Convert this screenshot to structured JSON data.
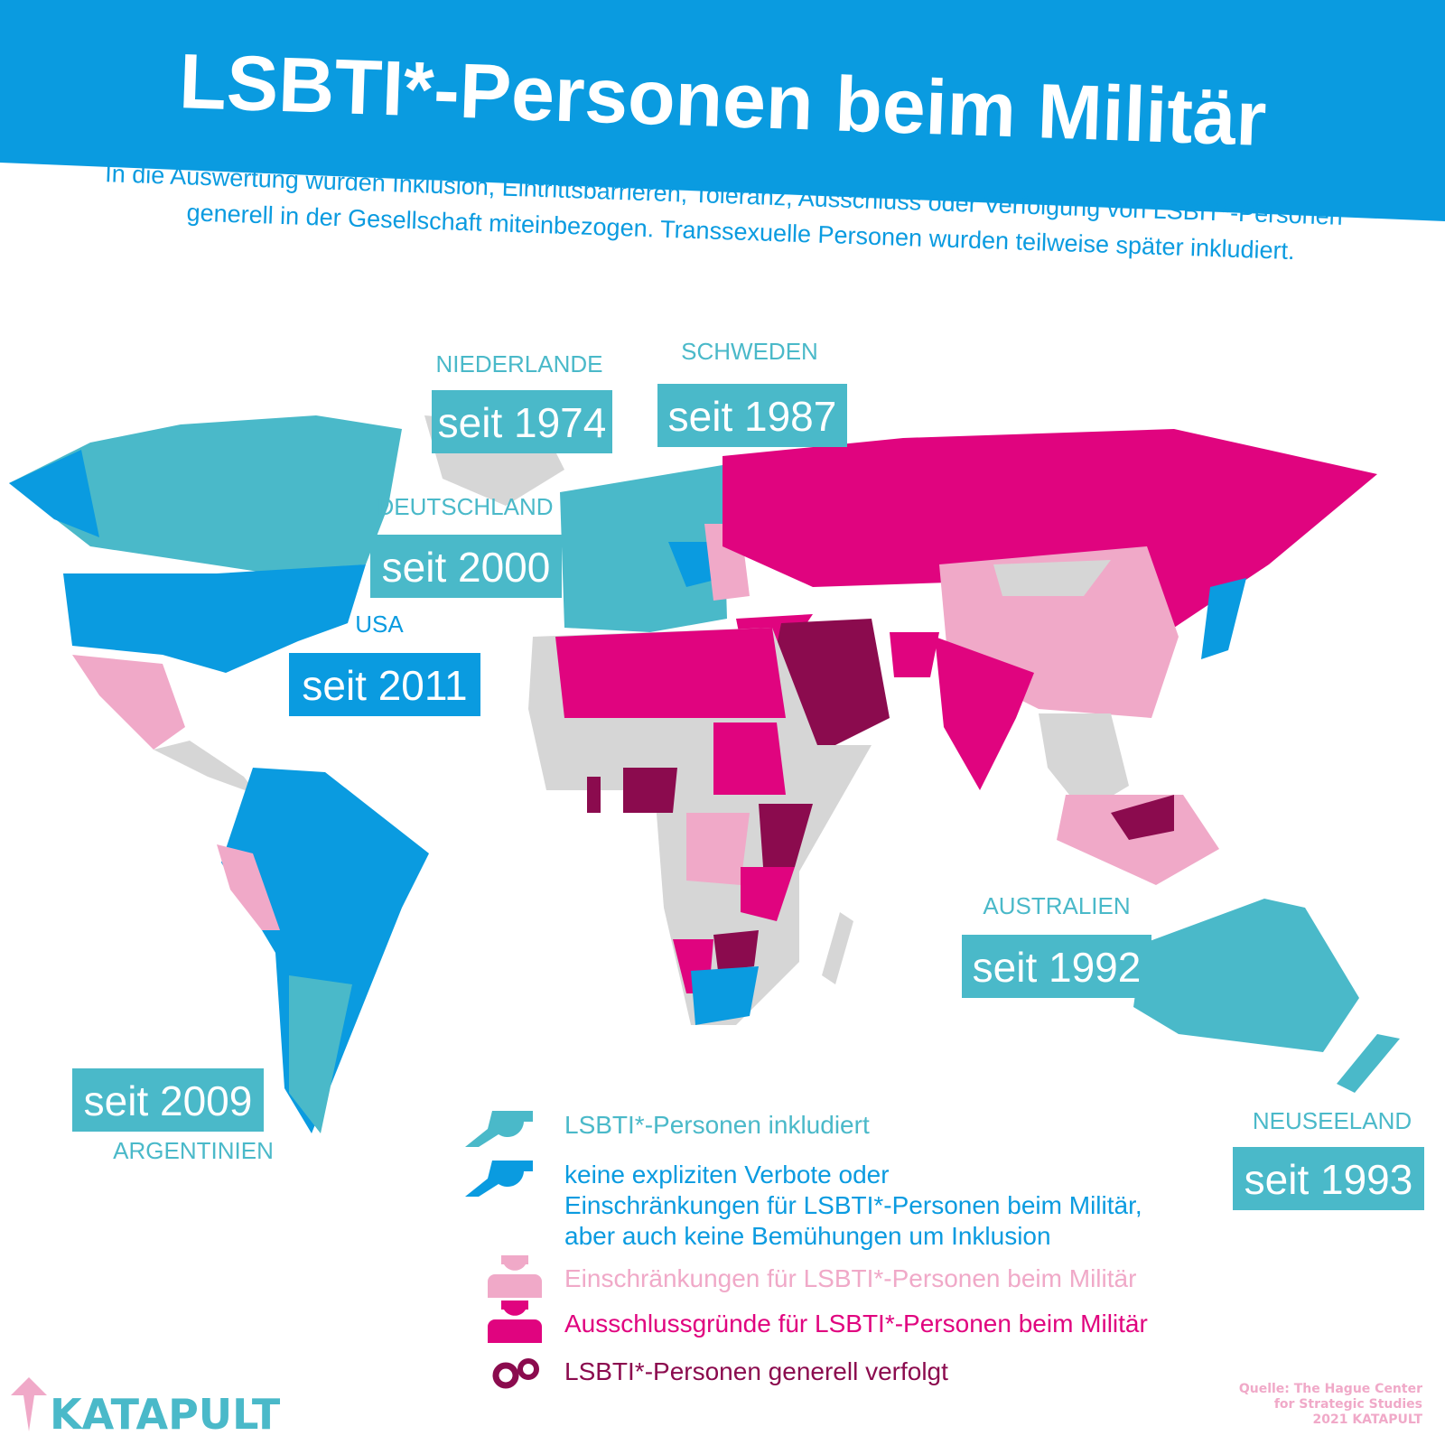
{
  "header": {
    "title": "LSBTI*-Personen beim Militär",
    "subtitle": [
      "In die Auswertung wurden Inklusion, Eintrittsbarrieren, Toleranz, Ausschluss oder Verfolgung von LSBIT*-Personen",
      "generell in der Gesellschaft miteinbezogen. Transsexuelle Personen wurden teilweise später inkludiert."
    ]
  },
  "callouts": [
    {
      "name": "NIEDERLANDE",
      "since": "seit 1974",
      "color": "#4ab9c9"
    },
    {
      "name": "SCHWEDEN",
      "since": "seit 1987",
      "color": "#4ab9c9"
    },
    {
      "name": "DEUTSCHLAND",
      "since": "seit 2000",
      "color": "#4ab9c9"
    },
    {
      "name": "USA",
      "since": "seit 2011",
      "color": "#0a9be0"
    },
    {
      "name": "AUSTRALIEN",
      "since": "seit 1992",
      "color": "#4ab9c9"
    },
    {
      "name": "ARGENTINIEN",
      "since": "seit 2009",
      "color": "#4ab9c9"
    },
    {
      "name": "NEUSEELAND",
      "since": "seit 1993",
      "color": "#4ab9c9"
    }
  ],
  "legend": [
    {
      "text": [
        "LSBTI*-Personen inkludiert"
      ],
      "color": "#4ab9c9"
    },
    {
      "text": [
        "keine expliziten Verbote oder",
        "Einschränkungen für LSBTI*-Personen beim Militär,",
        "aber auch keine Bemühungen um Inklusion"
      ],
      "color": "#0a9be0"
    },
    {
      "text": [
        "Einschränkungen für LSBTI*-Personen beim Militär"
      ],
      "color": "#f0a9c8"
    },
    {
      "text": [
        "Ausschlussgründe für LSBTI*-Personen beim Militär"
      ],
      "color": "#e0047f"
    },
    {
      "text": [
        "LSBTI*-Personen generell verfolgt"
      ],
      "color": "#8b0b4e"
    }
  ],
  "brand": "KATAPULT",
  "source": [
    "Quelle: The Hague Center",
    "for Strategic Studies",
    "2021 KATAPULT"
  ]
}
